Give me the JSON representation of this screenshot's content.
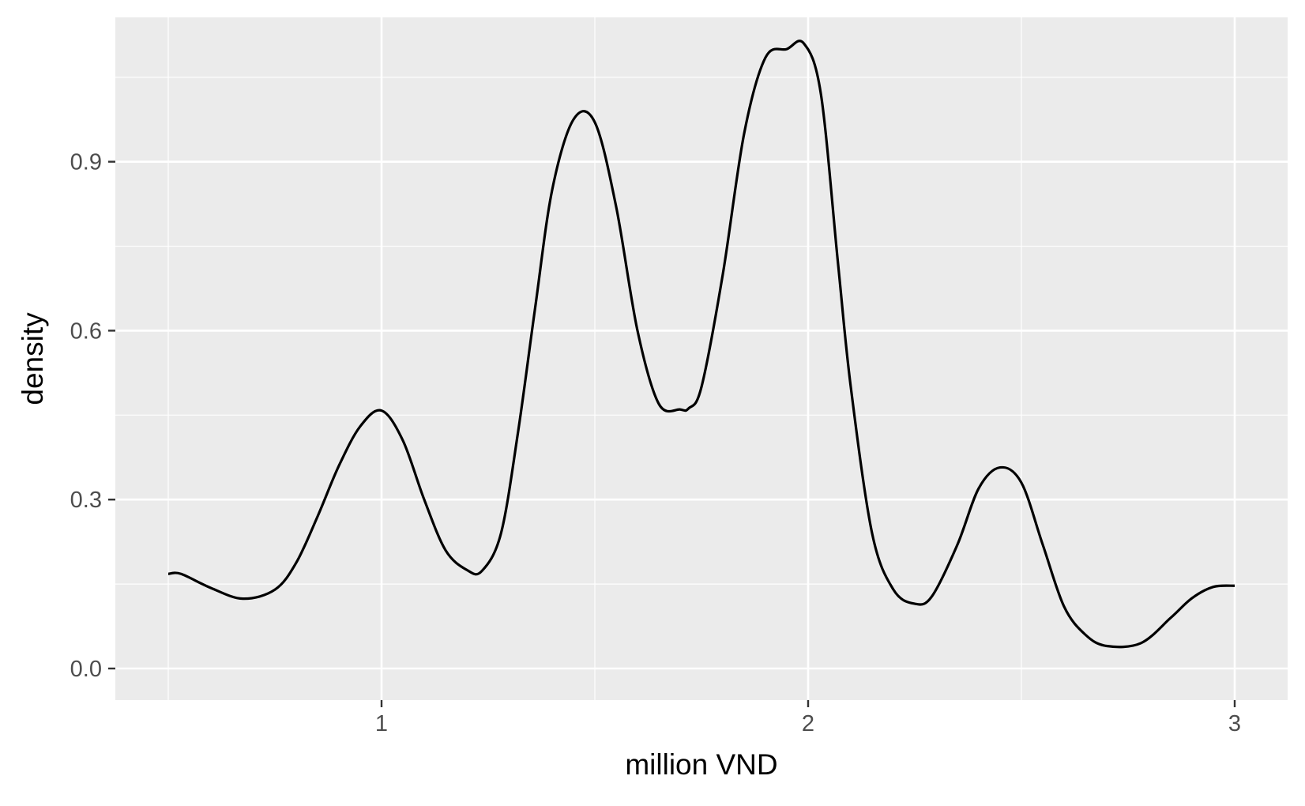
{
  "chart_data": {
    "type": "line",
    "title": "",
    "xlabel": "million VND",
    "ylabel": "density",
    "xlim": [
      0.5,
      3.0
    ],
    "ylim": [
      0.0,
      1.11
    ],
    "x_ticks": [
      1,
      2,
      3
    ],
    "x_tick_labels": [
      "1",
      "2",
      "3"
    ],
    "y_ticks": [
      0.0,
      0.3,
      0.6,
      0.9
    ],
    "y_tick_labels": [
      "0.0",
      "0.3",
      "0.6",
      "0.9"
    ],
    "grid": true,
    "panel_color": "#ebebeb",
    "grid_color": "#ffffff",
    "line_color": "#000000",
    "series": [
      {
        "name": "density",
        "x": [
          0.5,
          0.53,
          0.6,
          0.675,
          0.75,
          0.8,
          0.85,
          0.9,
          0.95,
          1.0,
          1.05,
          1.1,
          1.15,
          1.2,
          1.235,
          1.28,
          1.32,
          1.36,
          1.4,
          1.45,
          1.5,
          1.55,
          1.6,
          1.65,
          1.7,
          1.72,
          1.75,
          1.8,
          1.85,
          1.9,
          1.95,
          1.99,
          2.03,
          2.07,
          2.1,
          2.15,
          2.2,
          2.25,
          2.29,
          2.35,
          2.4,
          2.45,
          2.5,
          2.55,
          2.6,
          2.65,
          2.7,
          2.78,
          2.85,
          2.9,
          2.95,
          3.0
        ],
        "y": [
          0.168,
          0.168,
          0.143,
          0.124,
          0.14,
          0.188,
          0.27,
          0.36,
          0.43,
          0.458,
          0.405,
          0.3,
          0.21,
          0.175,
          0.173,
          0.24,
          0.42,
          0.64,
          0.85,
          0.975,
          0.97,
          0.82,
          0.6,
          0.47,
          0.46,
          0.462,
          0.5,
          0.7,
          0.95,
          1.085,
          1.1,
          1.11,
          1.02,
          0.72,
          0.5,
          0.24,
          0.14,
          0.115,
          0.128,
          0.22,
          0.32,
          0.357,
          0.33,
          0.22,
          0.11,
          0.06,
          0.04,
          0.045,
          0.09,
          0.125,
          0.145,
          0.147
        ]
      }
    ]
  }
}
